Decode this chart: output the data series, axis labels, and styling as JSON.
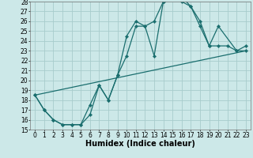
{
  "xlabel": "Humidex (Indice chaleur)",
  "bg_color": "#cce8e8",
  "grid_color": "#a8cccc",
  "line_color": "#1a6e6e",
  "xlim": [
    -0.5,
    23.5
  ],
  "ylim": [
    15,
    28
  ],
  "xticks": [
    0,
    1,
    2,
    3,
    4,
    5,
    6,
    7,
    8,
    9,
    10,
    11,
    12,
    13,
    14,
    15,
    16,
    17,
    18,
    19,
    20,
    21,
    22,
    23
  ],
  "yticks": [
    15,
    16,
    17,
    18,
    19,
    20,
    21,
    22,
    23,
    24,
    25,
    26,
    27,
    28
  ],
  "line1_x": [
    0,
    1,
    2,
    3,
    4,
    5,
    6,
    7,
    8,
    9,
    10,
    11,
    12,
    13,
    14,
    15,
    16,
    17,
    18,
    19,
    20,
    22,
    23
  ],
  "line1_y": [
    18.5,
    17.0,
    16.0,
    15.5,
    15.5,
    15.5,
    17.5,
    19.5,
    18.0,
    20.5,
    22.5,
    25.5,
    25.5,
    26.0,
    28.0,
    28.5,
    28.5,
    27.5,
    25.5,
    23.5,
    25.5,
    23.0,
    23.5
  ],
  "line2_x": [
    0,
    1,
    2,
    3,
    4,
    5,
    6,
    7,
    8,
    9,
    10,
    11,
    12,
    13,
    14,
    15,
    16,
    17,
    18,
    19,
    20,
    21,
    22,
    23
  ],
  "line2_y": [
    18.5,
    17.0,
    16.0,
    15.5,
    15.5,
    15.5,
    16.5,
    19.5,
    18.0,
    20.5,
    24.5,
    26.0,
    25.5,
    22.5,
    28.0,
    28.5,
    28.0,
    27.5,
    26.0,
    23.5,
    23.5,
    23.5,
    23.0,
    23.0
  ],
  "line3_x": [
    0,
    23
  ],
  "line3_y": [
    18.5,
    23.0
  ],
  "xlabel_fontsize": 7,
  "tick_fontsize": 5.5
}
